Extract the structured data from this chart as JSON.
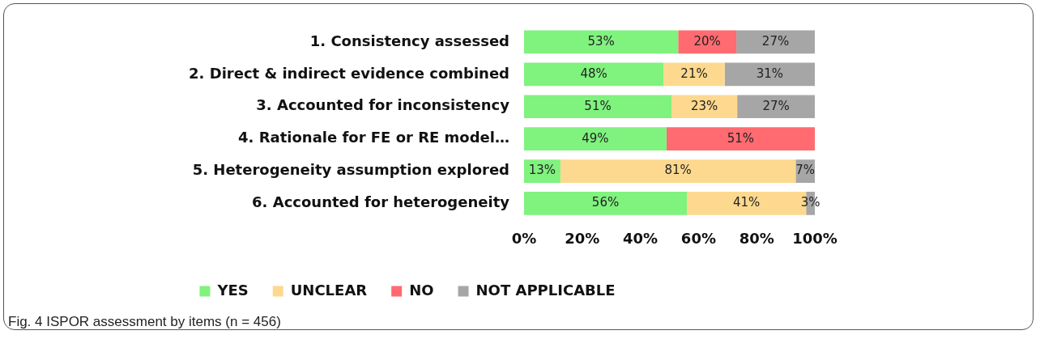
{
  "chart_data": {
    "type": "bar",
    "orientation": "horizontal",
    "stacked": true,
    "categories": [
      "1. Consistency assessed",
      "2. Direct & indirect evidence combined",
      "3. Accounted for inconsistency",
      "4. Rationale for FE or RE model…",
      "5. Heterogeneity assumption explored",
      "6. Accounted for heterogeneity"
    ],
    "series": [
      {
        "name": "YES",
        "color": "#80f27e",
        "values": [
          53,
          48,
          50.7,
          49,
          12.5,
          56
        ],
        "value_labels": [
          "53%",
          "48%",
          "51%",
          "49%",
          "13%",
          "56%"
        ]
      },
      {
        "name": "UNCLEAR",
        "color": "#fdd98f",
        "values": [
          null,
          21,
          22.6,
          null,
          80.9,
          41
        ],
        "value_labels": [
          null,
          "21%",
          "23%",
          null,
          "81%",
          "41%"
        ]
      },
      {
        "name": "NO",
        "color": "#ff6b70",
        "values": [
          20,
          null,
          null,
          51,
          null,
          null
        ],
        "value_labels": [
          "20%",
          null,
          null,
          "51%",
          null,
          null
        ]
      },
      {
        "name": "NOT APPLICABLE",
        "color": "#a6a6a6",
        "values": [
          27,
          31,
          26.7,
          null,
          6.6,
          3
        ],
        "value_labels": [
          "27%",
          "31%",
          "27%",
          null,
          "7%",
          "3%"
        ]
      }
    ],
    "xlim": [
      0,
      100
    ],
    "xticks": [
      {
        "value": 0,
        "label": "0%"
      },
      {
        "value": 20,
        "label": "20%"
      },
      {
        "value": 40,
        "label": "40%"
      },
      {
        "value": 60,
        "label": "60%"
      },
      {
        "value": 80,
        "label": "80%"
      },
      {
        "value": 100,
        "label": "100%"
      }
    ],
    "grid": false,
    "legend": "bottom",
    "annotations": [
      "Fig. 4 ISPOR assessment by items (n = 456)"
    ]
  }
}
